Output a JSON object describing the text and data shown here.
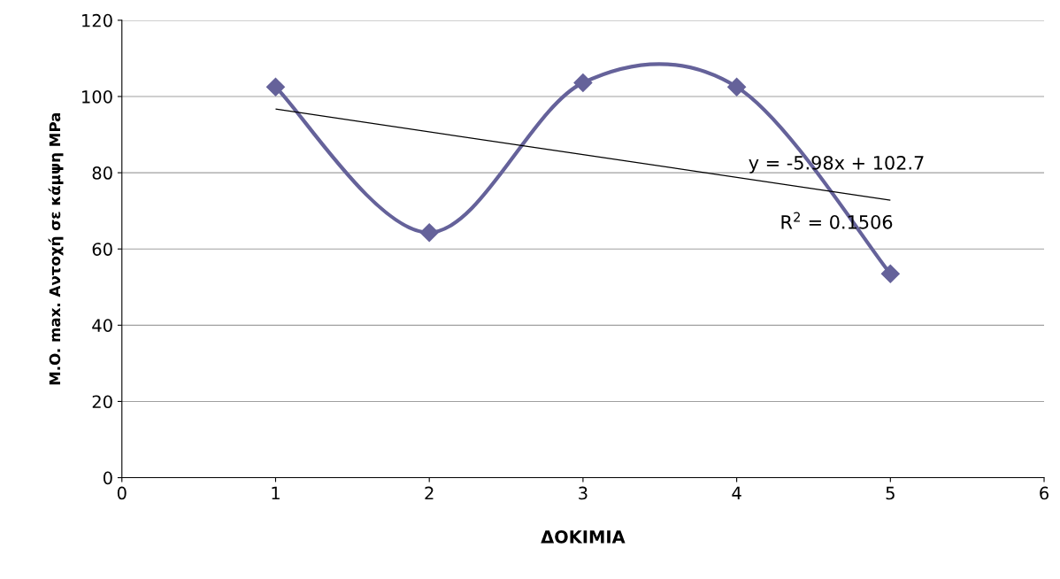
{
  "chart_data": {
    "type": "line",
    "xlabel": "ΔΟΚΙΜΙΑ",
    "ylabel": "M.O. max. Αντοχή σε κάμψη MPa",
    "series": [
      {
        "x": [
          1,
          2,
          3,
          4,
          5
        ],
        "values": [
          102.5,
          64.3,
          103.6,
          102.5,
          53.5
        ],
        "color": "#65629a",
        "marker": "diamond"
      },
      {
        "x": [
          1,
          5
        ],
        "values": [
          96.7,
          72.8
        ],
        "color": "#000000",
        "marker": "none"
      }
    ],
    "xlim": [
      0,
      6
    ],
    "xticks": [
      0,
      1,
      2,
      3,
      4,
      5,
      6
    ],
    "ylim": [
      0,
      120
    ],
    "yticks": [
      0,
      20,
      40,
      60,
      80,
      100,
      120
    ],
    "grid": "y",
    "annotations": [
      "y = -5.98x + 102.7",
      "R$^{2}$ = 0.1506"
    ]
  }
}
